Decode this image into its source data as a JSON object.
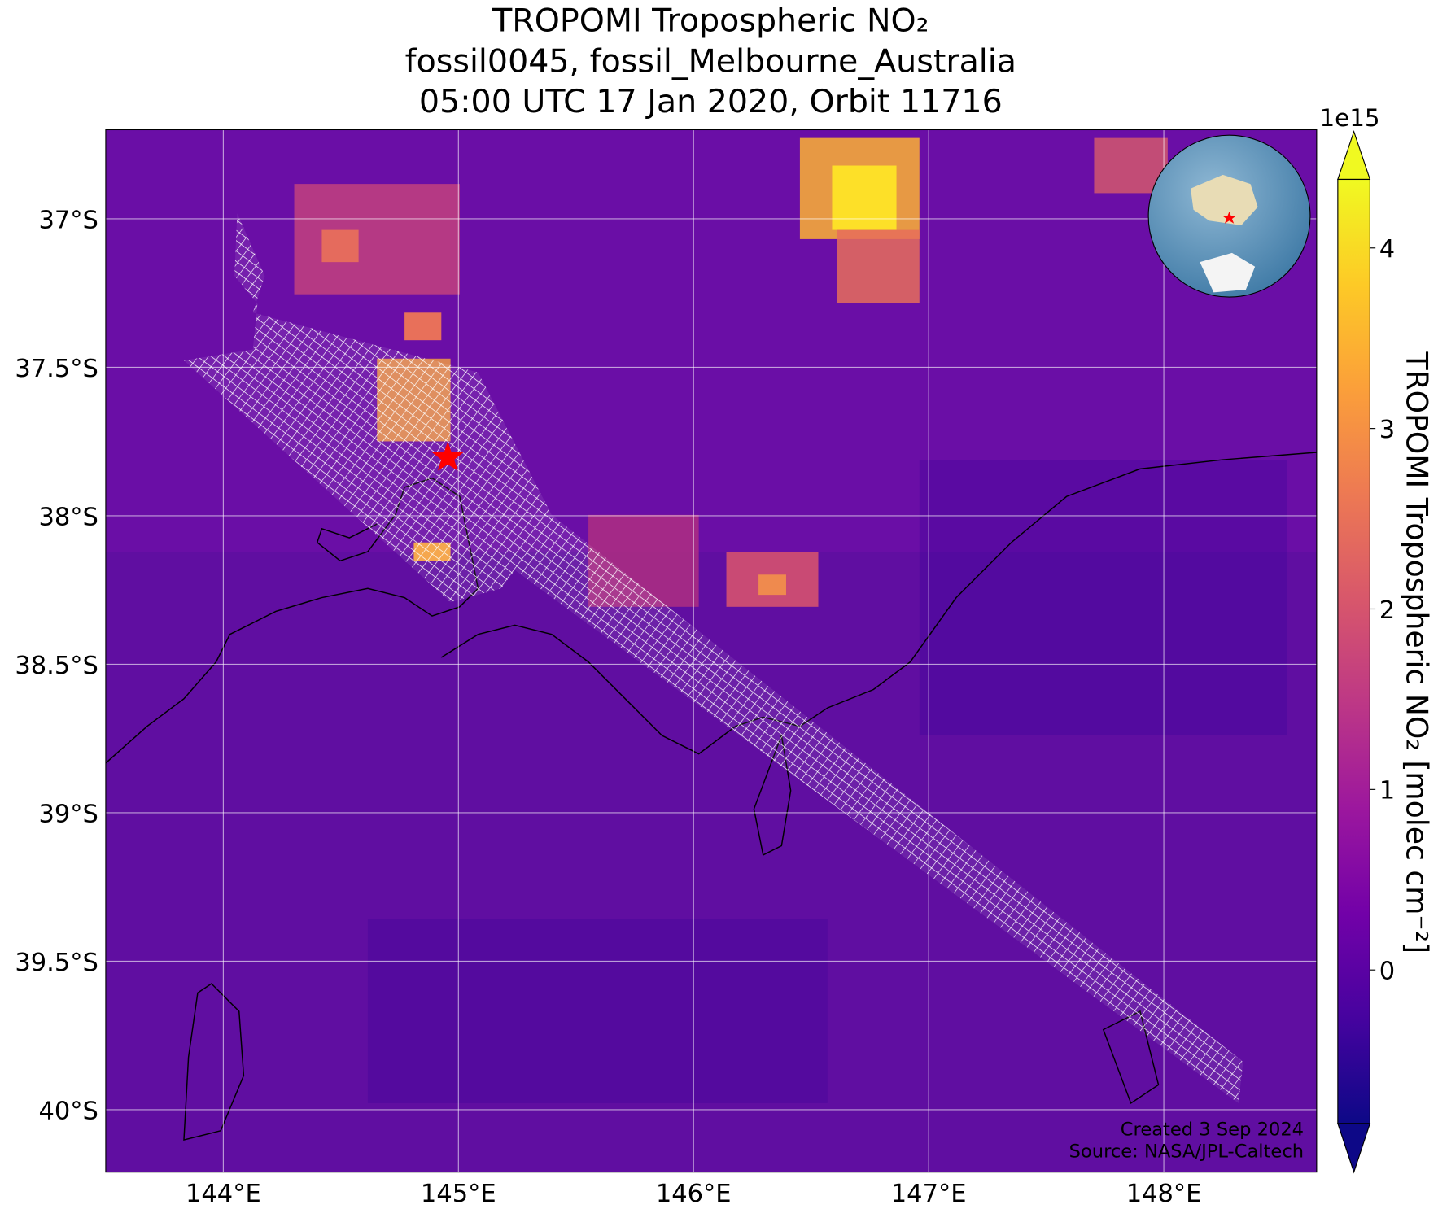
{
  "chart_data": {
    "type": "heatmap",
    "title": [
      "TROPOMI Tropospheric NO₂",
      "fossil0045, fossil_Melbourne_Australia",
      "05:00 UTC 17 Jan 2020, Orbit 11716"
    ],
    "xlim": [
      143.5,
      148.65
    ],
    "ylim": [
      -40.21,
      -36.7
    ],
    "xticks": [
      {
        "value": 144,
        "label": "144°E"
      },
      {
        "value": 145,
        "label": "145°E"
      },
      {
        "value": 146,
        "label": "146°E"
      },
      {
        "value": 147,
        "label": "147°E"
      },
      {
        "value": 148,
        "label": "148°E"
      }
    ],
    "yticks": [
      {
        "value": -37,
        "label": "37°S"
      },
      {
        "value": -37.5,
        "label": "37.5°S"
      },
      {
        "value": -38,
        "label": "38°S"
      },
      {
        "value": -38.5,
        "label": "38.5°S"
      },
      {
        "value": -39,
        "label": "39°S"
      },
      {
        "value": -39.5,
        "label": "39.5°S"
      },
      {
        "value": -40,
        "label": "40°S"
      }
    ],
    "grid": true,
    "colorbar": {
      "label": "TROPOMI Tropospheric NO₂ [molec cm⁻²]",
      "offset_label": "1e15",
      "lim": [
        -0.85,
        4.38
      ],
      "ticks": [
        0,
        1,
        2,
        3,
        4
      ],
      "colormap": "plasma"
    },
    "annotations": [
      "Created 3 Sep 2024",
      "Source: NASA/JPL-Caltech"
    ]
  }
}
